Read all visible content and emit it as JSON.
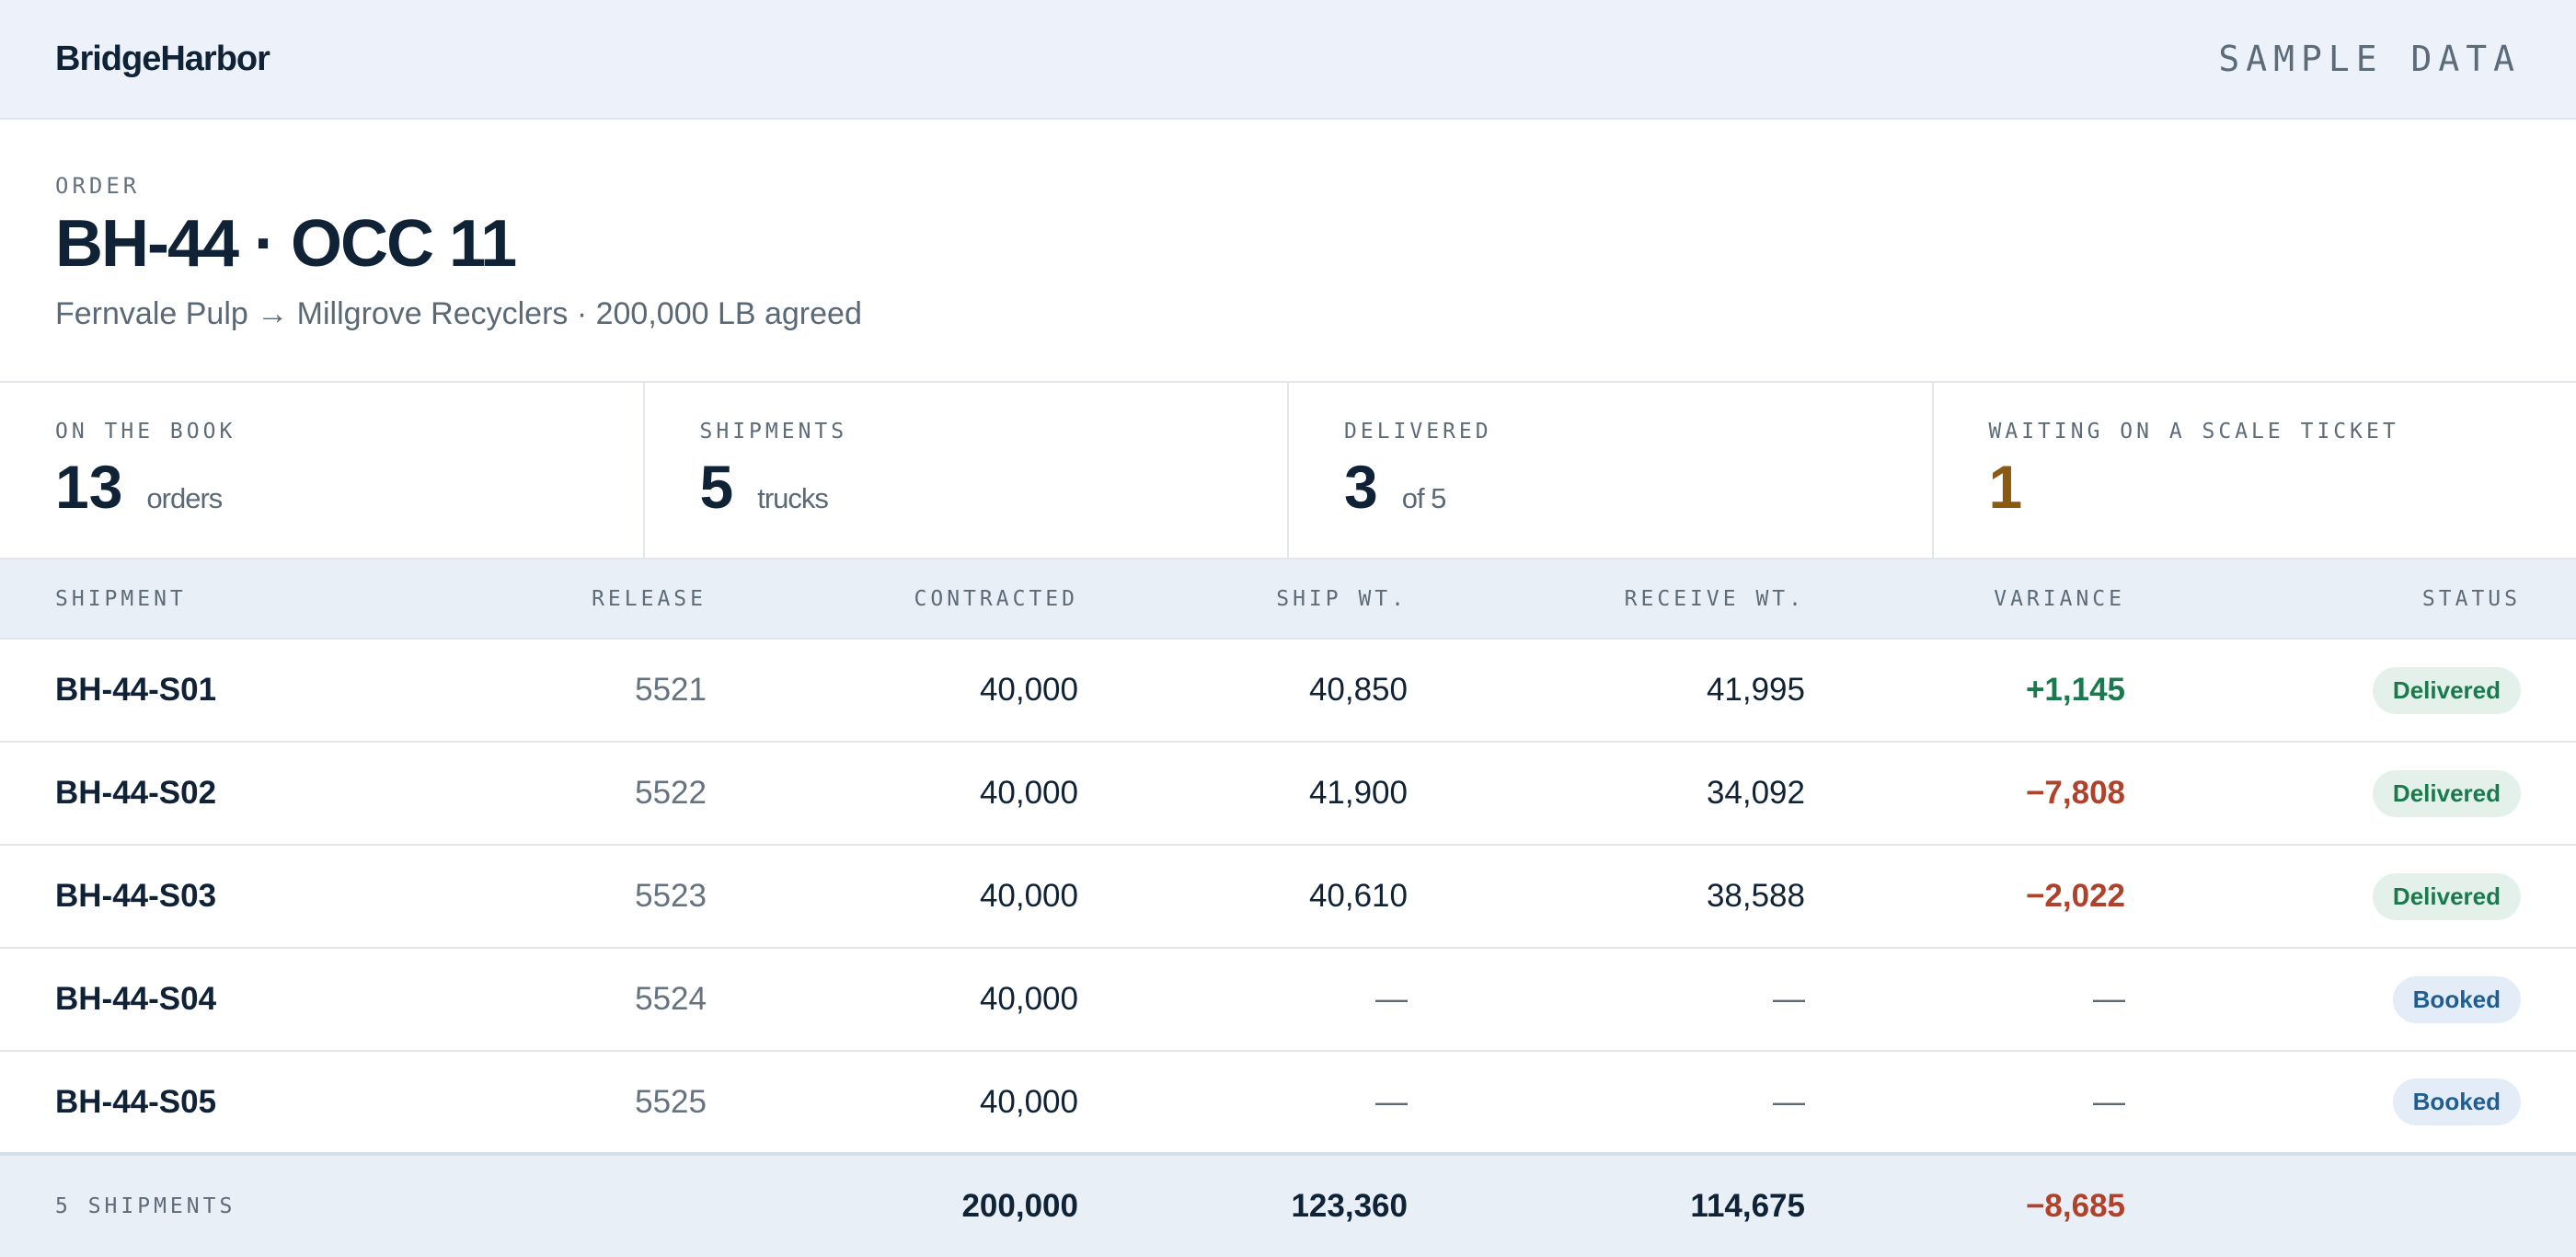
{
  "header": {
    "brand": "BridgeHarbor",
    "sample_label": "SAMPLE DATA"
  },
  "order": {
    "label": "ORDER",
    "title": "BH-44 · OCC 11",
    "subtitle": "Fernvale Pulp → Millgrove Recyclers · 200,000 LB agreed"
  },
  "stats": [
    {
      "label": "ON THE BOOK",
      "value": "13",
      "unit": "orders"
    },
    {
      "label": "SHIPMENTS",
      "value": "5",
      "unit": "trucks"
    },
    {
      "label": "DELIVERED",
      "value": "3",
      "unit": "of 5"
    },
    {
      "label": "WAITING ON A SCALE TICKET",
      "value": "1",
      "unit": ""
    }
  ],
  "table": {
    "columns": [
      "SHIPMENT",
      "RELEASE",
      "CONTRACTED",
      "SHIP WT.",
      "RECEIVE WT.",
      "VARIANCE",
      "STATUS"
    ],
    "rows": [
      {
        "shipment": "BH-44-S01",
        "release": "5521",
        "contracted": "40,000",
        "ship_wt": "40,850",
        "receive_wt": "41,995",
        "variance": "+1,145",
        "status": "Delivered"
      },
      {
        "shipment": "BH-44-S02",
        "release": "5522",
        "contracted": "40,000",
        "ship_wt": "41,900",
        "receive_wt": "34,092",
        "variance": "−7,808",
        "status": "Delivered"
      },
      {
        "shipment": "BH-44-S03",
        "release": "5523",
        "contracted": "40,000",
        "ship_wt": "40,610",
        "receive_wt": "38,588",
        "variance": "−2,022",
        "status": "Delivered"
      },
      {
        "shipment": "BH-44-S04",
        "release": "5524",
        "contracted": "40,000",
        "ship_wt": "—",
        "receive_wt": "—",
        "variance": "—",
        "status": "Booked"
      },
      {
        "shipment": "BH-44-S05",
        "release": "5525",
        "contracted": "40,000",
        "ship_wt": "—",
        "receive_wt": "—",
        "variance": "—",
        "status": "Booked"
      }
    ],
    "totals": {
      "label": "5 SHIPMENTS",
      "contracted": "200,000",
      "ship_wt": "123,360",
      "receive_wt": "114,675",
      "variance": "−8,685"
    }
  },
  "colors": {
    "positive": "#1b7a4d",
    "negative": "#b0412b",
    "warning": "#8a5a12",
    "header_bg": "#edf2fa"
  }
}
